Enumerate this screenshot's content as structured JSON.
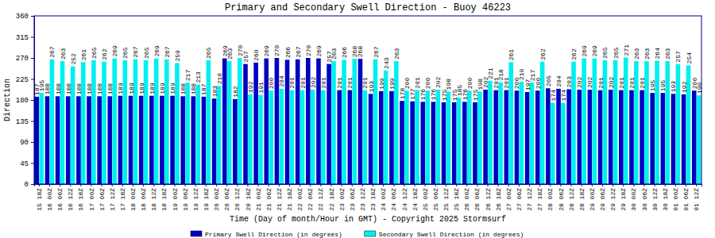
{
  "chart_data": {
    "type": "bar",
    "title": "Primary and Secondary Swell Direction - Buoy 46223",
    "x_label": "Time (Day of month/Hour in GMT) - Copyright 2025 Stormsurf",
    "y_label": "Direction",
    "categories": [
      "15 18Z",
      "16 00Z",
      "16 06Z",
      "16 12Z",
      "16 18Z",
      "17 00Z",
      "17 06Z",
      "17 12Z",
      "17 18Z",
      "18 00Z",
      "18 06Z",
      "18 12Z",
      "18 18Z",
      "19 00Z",
      "19 06Z",
      "19 12Z",
      "19 18Z",
      "20 00Z",
      "20 06Z",
      "20 12Z",
      "20 18Z",
      "21 00Z",
      "21 06Z",
      "21 12Z",
      "21 18Z",
      "22 00Z",
      "22 06Z",
      "22 12Z",
      "22 18Z",
      "23 00Z",
      "23 06Z",
      "23 12Z",
      "23 18Z",
      "24 00Z",
      "24 06Z",
      "24 12Z",
      "24 18Z",
      "25 00Z",
      "25 06Z",
      "25 12Z",
      "25 18Z",
      "26 00Z",
      "26 06Z",
      "26 12Z",
      "26 18Z",
      "27 00Z",
      "27 06Z",
      "27 12Z",
      "27 18Z",
      "28 00Z",
      "28 06Z",
      "28 12Z",
      "28 18Z",
      "29 00Z",
      "29 06Z",
      "29 12Z",
      "29 18Z",
      "30 00Z",
      "30 06Z",
      "30 12Z",
      "30 18Z",
      "01 00Z",
      "01 06Z",
      "01 12Z"
    ],
    "series": [
      {
        "name": "Primary Swell Direction (in degrees)",
        "color": "#0000c0",
        "values": [
          187,
          188,
          188,
          188,
          188,
          188,
          188,
          188,
          189,
          189,
          189,
          189,
          189,
          189,
          188,
          188,
          187,
          183,
          269,
          182,
          257,
          260,
          269,
          270,
          266,
          267,
          270,
          269,
          257,
          201,
          201,
          268,
          193,
          199,
          199,
          178,
          177,
          176,
          176,
          175,
          175,
          176,
          175,
          202,
          201,
          201,
          200,
          197,
          200,
          205,
          204,
          203,
          202,
          202,
          201,
          202,
          201,
          201,
          201,
          195,
          195,
          193,
          192,
          200
        ]
      },
      {
        "name": "Secondary Swell Direction (in degrees)",
        "color": "#00f0f0",
        "values": [
          195,
          267,
          263,
          252,
          261,
          265,
          262,
          269,
          265,
          267,
          265,
          269,
          267,
          259,
          217,
          213,
          265,
          210,
          263,
          270,
          192,
          191,
          200,
          204,
          201,
          201,
          202,
          201,
          263,
          266,
          268,
          201,
          267,
          243,
          263,
          200,
          201,
          200,
          202,
          198,
          185,
          200,
          198,
          221,
          218,
          261,
          219,
          217,
          262,
          174,
          174,
          262,
          269,
          269,
          265,
          265,
          271,
          263,
          263,
          264,
          263,
          257,
          254,
          190
        ]
      }
    ],
    "ylim": [
      0,
      360
    ],
    "yticks": [
      0,
      45,
      90,
      135,
      180,
      225,
      270,
      315,
      360
    ],
    "grid": false,
    "data_labels": true,
    "legend": "bottom"
  }
}
